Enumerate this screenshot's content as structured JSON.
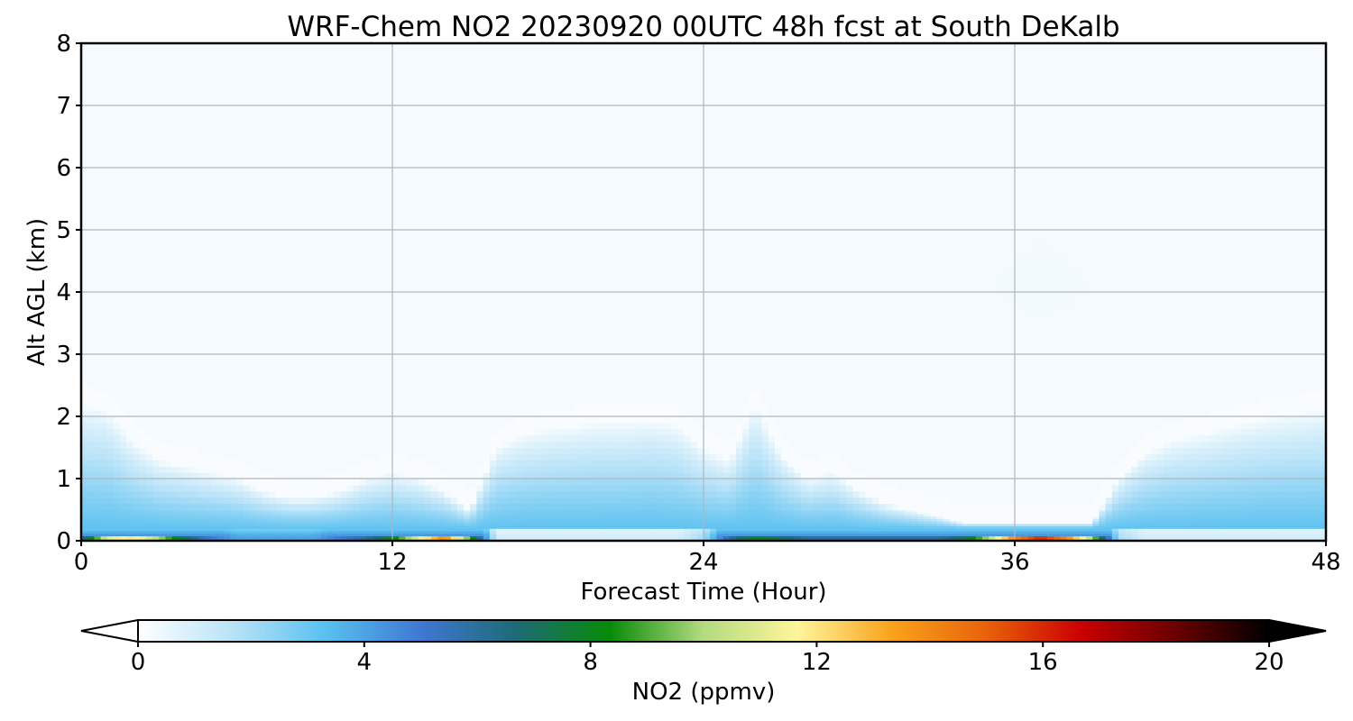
{
  "chart_data": {
    "type": "heatmap",
    "title": "WRF-Chem NO2  20230920 00UTC 48h fcst at South DeKalb",
    "xlabel": "Forecast Time (Hour)",
    "ylabel": "Alt AGL (km)",
    "xlim": [
      0,
      48
    ],
    "ylim": [
      0,
      8
    ],
    "xticks": [
      "0",
      "12",
      "24",
      "36",
      "48"
    ],
    "yticks": [
      "0",
      "1",
      "2",
      "3",
      "4",
      "5",
      "6",
      "7",
      "8"
    ],
    "grid": true,
    "x_hours": [
      0,
      1,
      2,
      3,
      4,
      5,
      6,
      7,
      8,
      9,
      10,
      11,
      12,
      13,
      14,
      15,
      16,
      17,
      18,
      19,
      20,
      21,
      22,
      23,
      24,
      25,
      26,
      27,
      28,
      29,
      30,
      31,
      32,
      33,
      34,
      35,
      36,
      37,
      38,
      39,
      40,
      41,
      42,
      43,
      44,
      45,
      46,
      47,
      48
    ],
    "mixed_layer_depth_km": [
      2.2,
      2.1,
      1.6,
      1.3,
      1.2,
      1.1,
      1.0,
      0.8,
      0.7,
      0.7,
      0.8,
      1.0,
      1.1,
      1.0,
      0.8,
      0.5,
      1.5,
      1.7,
      1.8,
      1.85,
      1.9,
      1.9,
      1.95,
      1.85,
      1.5,
      1.3,
      2.2,
      1.4,
      1.0,
      1.1,
      0.8,
      0.6,
      0.5,
      0.4,
      0.3,
      0.3,
      0.3,
      0.3,
      0.3,
      0.3,
      1.0,
      1.4,
      1.6,
      1.7,
      1.8,
      1.9,
      2.0,
      2.05,
      2.1
    ],
    "surface_no2_ppmv": [
      6,
      11,
      12,
      10,
      7,
      5,
      4,
      4,
      4,
      4,
      5,
      6,
      8,
      11,
      14,
      9,
      1,
      1,
      1,
      1,
      1,
      1,
      1,
      1,
      2,
      6,
      8,
      7,
      6,
      6,
      6,
      6,
      6,
      6,
      7,
      10,
      14,
      16,
      14,
      10,
      2,
      1,
      1,
      1,
      1,
      1,
      1,
      1,
      1
    ],
    "aloft_feature": {
      "x_range": [
        35,
        39
      ],
      "alt_range_km": [
        3.5,
        4.8
      ],
      "no2_ppmv": 0.3
    },
    "colorbar": {
      "label": "NO2  (ppmv)",
      "ticks": [
        "0",
        "4",
        "8",
        "12",
        "16",
        "20"
      ],
      "range": [
        0,
        20
      ],
      "extend": "both",
      "colors": [
        "#ffffff",
        "#b9e3f8",
        "#58c0f0",
        "#3f78d2",
        "#1e6a78",
        "#078a08",
        "#b4db80",
        "#fff59a",
        "#f9a21b",
        "#e8620a",
        "#cc0000",
        "#6b0000",
        "#000000"
      ]
    }
  }
}
